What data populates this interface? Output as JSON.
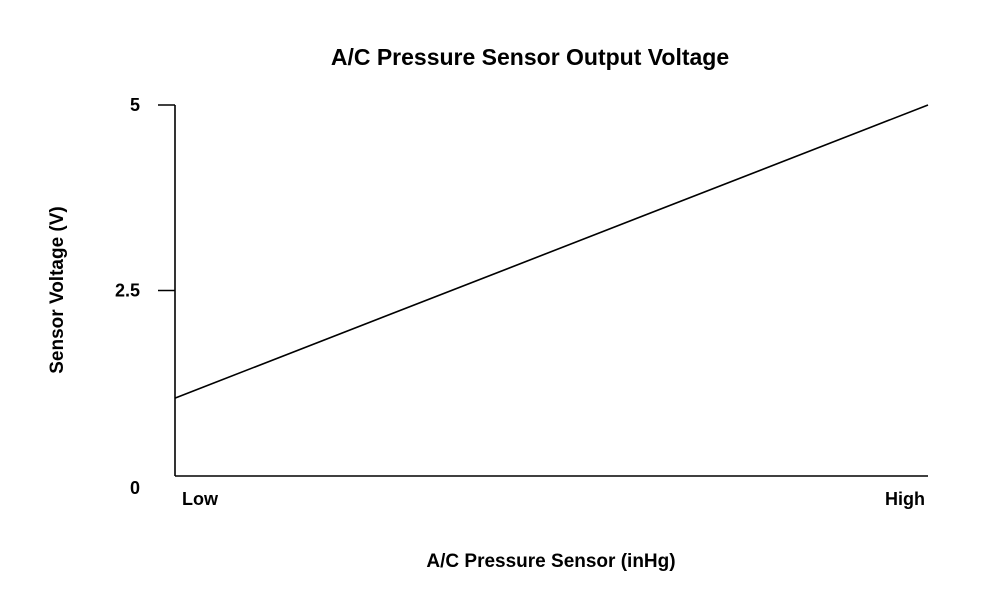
{
  "chart_data": {
    "type": "line",
    "title": "A/C Pressure Sensor Output Voltage",
    "xlabel": "A/C Pressure Sensor (inHg)",
    "ylabel": "Sensor Voltage (V)",
    "x_tick_labels": [
      "Low",
      "High"
    ],
    "y_ticks": [
      0,
      2.5,
      5
    ],
    "y_tick_labels": [
      "0",
      "2.5",
      "5"
    ],
    "xlim": [
      0,
      1
    ],
    "ylim": [
      0,
      5
    ],
    "grid": false,
    "series": [
      {
        "x": [
          0,
          1
        ],
        "y": [
          1.05,
          5.0
        ]
      }
    ],
    "colors": {
      "line": "#000000",
      "axis": "#000000"
    }
  }
}
